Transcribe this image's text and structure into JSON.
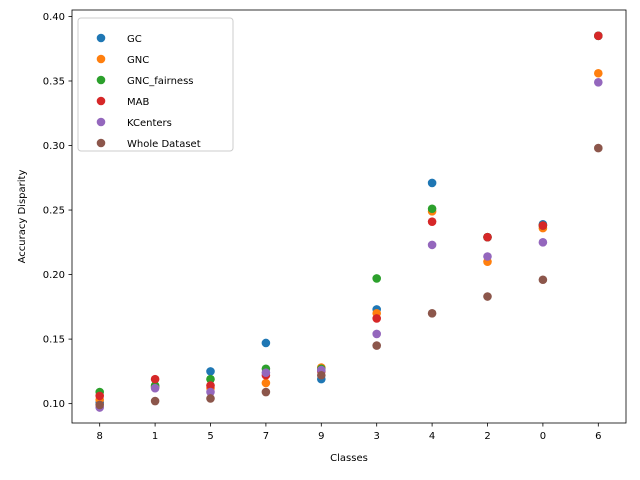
{
  "chart_data": {
    "type": "scatter",
    "xlabel": "Classes",
    "ylabel": "Accuracy Disparity",
    "categories": [
      "8",
      "1",
      "5",
      "7",
      "9",
      "3",
      "4",
      "2",
      "0",
      "6"
    ],
    "ylim": [
      0.085,
      0.405
    ],
    "yticks": [
      0.1,
      0.15,
      0.2,
      0.25,
      0.3,
      0.35,
      0.4
    ],
    "yticklabels": [
      "0.10",
      "0.15",
      "0.20",
      "0.25",
      "0.30",
      "0.35",
      "0.40"
    ],
    "grid": false,
    "legend_position": "top-left",
    "series": [
      {
        "name": "GC",
        "color": "#1f77b4",
        "values": [
          0.101,
          0.113,
          0.125,
          0.147,
          0.119,
          0.173,
          0.271,
          0.229,
          0.239,
          0.385
        ]
      },
      {
        "name": "GNC",
        "color": "#ff7f0e",
        "values": [
          0.103,
          0.113,
          0.112,
          0.116,
          0.128,
          0.17,
          0.249,
          0.21,
          0.236,
          0.356
        ]
      },
      {
        "name": "GNC_fairness",
        "color": "#2ca02c",
        "values": [
          0.109,
          0.114,
          0.119,
          0.127,
          0.127,
          0.197,
          0.251,
          0.229,
          0.238,
          0.385
        ]
      },
      {
        "name": "MAB",
        "color": "#d62728",
        "values": [
          0.106,
          0.119,
          0.114,
          0.122,
          0.125,
          0.166,
          0.241,
          0.229,
          0.238,
          0.385
        ]
      },
      {
        "name": "KCenters",
        "color": "#9467bd",
        "values": [
          0.097,
          0.112,
          0.109,
          0.124,
          0.126,
          0.154,
          0.223,
          0.214,
          0.225,
          0.349
        ]
      },
      {
        "name": "Whole Dataset",
        "color": "#8c564b",
        "values": [
          0.099,
          0.102,
          0.104,
          0.109,
          0.122,
          0.145,
          0.17,
          0.183,
          0.196,
          0.298
        ]
      }
    ]
  }
}
